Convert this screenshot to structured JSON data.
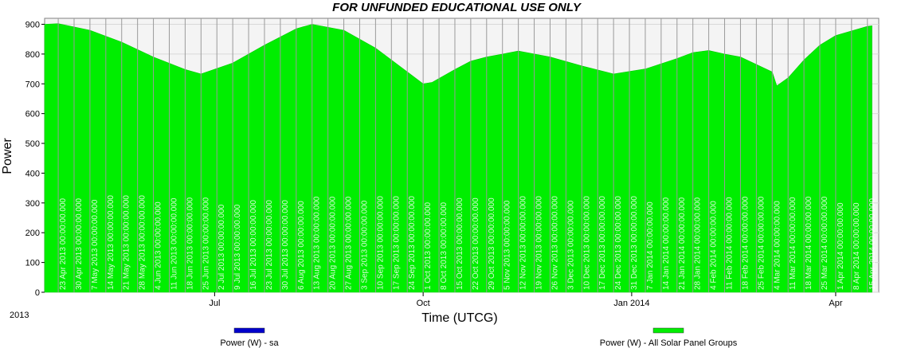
{
  "chart_data": {
    "type": "area",
    "title": "FOR UNFUNDED EDUCATIONAL USE ONLY",
    "xlabel": "Time (UTCG)",
    "ylabel": "Power",
    "ylim": [
      0,
      920
    ],
    "xlim": [
      "2013-04-17",
      "2014-04-20"
    ],
    "y_ticks": [
      "0",
      "100",
      "200",
      "300",
      "400",
      "500",
      "600",
      "700",
      "800",
      "900"
    ],
    "x_ticks": [
      {
        "date": "2013-07-01",
        "label": "Jul"
      },
      {
        "date": "2013-10-01",
        "label": "Oct"
      },
      {
        "date": "2014-01-01",
        "label": "Jan 2014"
      },
      {
        "date": "2014-04-01",
        "label": "Apr"
      }
    ],
    "x_start_label": "2013",
    "grid": true,
    "legend_position": "bottom",
    "series": [
      {
        "name": "Power (W) - sa",
        "color": "#0000cc",
        "values": []
      },
      {
        "name": "Power (W) - All Solar Panel Groups",
        "color": "#00ee00",
        "x": [
          "2013-04-17",
          "2013-04-23",
          "2013-05-07",
          "2013-05-21",
          "2013-06-04",
          "2013-06-18",
          "2013-06-25",
          "2013-07-09",
          "2013-07-23",
          "2013-08-06",
          "2013-08-13",
          "2013-08-27",
          "2013-09-10",
          "2013-09-24",
          "2013-10-01",
          "2013-10-05",
          "2013-10-15",
          "2013-10-22",
          "2013-10-29",
          "2013-11-05",
          "2013-11-12",
          "2013-11-26",
          "2013-12-10",
          "2013-12-24",
          "2014-01-07",
          "2014-01-21",
          "2014-01-28",
          "2014-02-04",
          "2014-02-11",
          "2014-02-18",
          "2014-03-04",
          "2014-03-06",
          "2014-03-11",
          "2014-03-18",
          "2014-03-25",
          "2014-04-01",
          "2014-04-15",
          "2014-04-17"
        ],
        "y": [
          900,
          902,
          880,
          840,
          790,
          748,
          733,
          770,
          830,
          885,
          900,
          880,
          820,
          740,
          700,
          705,
          748,
          776,
          790,
          800,
          810,
          790,
          760,
          733,
          750,
          785,
          805,
          812,
          800,
          790,
          740,
          693,
          720,
          780,
          830,
          862,
          893,
          895
        ]
      }
    ],
    "date_labels": [
      "23 Apr 2013 00:00:00.000",
      "30 Apr 2013 00:00:00.000",
      "7 May 2013 00:00:00.000",
      "14 May 2013 00:00:00.000",
      "21 May 2013 00:00:00.000",
      "28 May 2013 00:00:00.000",
      "4 Jun 2013 00:00:00.000",
      "11 Jun 2013 00:00:00.000",
      "18 Jun 2013 00:00:00.000",
      "25 Jun 2013 00:00:00.000",
      "2 Jul 2013 00:00:00.000",
      "9 Jul 2013 00:00:00.000",
      "16 Jul 2013 00:00:00.000",
      "23 Jul 2013 00:00:00.000",
      "30 Jul 2013 00:00:00.000",
      "6 Aug 2013 00:00:00.000",
      "13 Aug 2013 00:00:00.000",
      "20 Aug 2013 00:00:00.000",
      "27 Aug 2013 00:00:00.000",
      "3 Sep 2013 00:00:00.000",
      "10 Sep 2013 00:00:00.000",
      "17 Sep 2013 00:00:00.000",
      "24 Sep 2013 00:00:00.000",
      "1 Oct 2013 00:00:00.000",
      "8 Oct 2013 00:00:00.000",
      "15 Oct 2013 00:00:00.000",
      "22 Oct 2013 00:00:00.000",
      "29 Oct 2013 00:00:00.000",
      "5 Nov 2013 00:00:00.000",
      "12 Nov 2013 00:00:00.000",
      "19 Nov 2013 00:00:00.000",
      "26 Nov 2013 00:00:00.000",
      "3 Dec 2013 00:00:00.000",
      "10 Dec 2013 00:00:00.000",
      "17 Dec 2013 00:00:00.000",
      "24 Dec 2013 00:00:00.000",
      "31 Dec 2013 00:00:00.000",
      "7 Jan 2014 00:00:00.000",
      "14 Jan 2014 00:00:00.000",
      "21 Jan 2014 00:00:00.000",
      "28 Jan 2014 00:00:00.000",
      "4 Feb 2014 00:00:00.000",
      "11 Feb 2014 00:00:00.000",
      "18 Feb 2014 00:00:00.000",
      "25 Feb 2014 00:00:00.000",
      "4 Mar 2014 00:00:00.000",
      "11 Mar 2014 00:00:00.000",
      "18 Mar 2014 00:00:00.000",
      "25 Mar 2014 00:00:00.000",
      "1 Apr 2014 00:00:00.000",
      "8 Apr 2014 00:00:00.000",
      "15 Apr 2014 00:00:00.000"
    ]
  }
}
